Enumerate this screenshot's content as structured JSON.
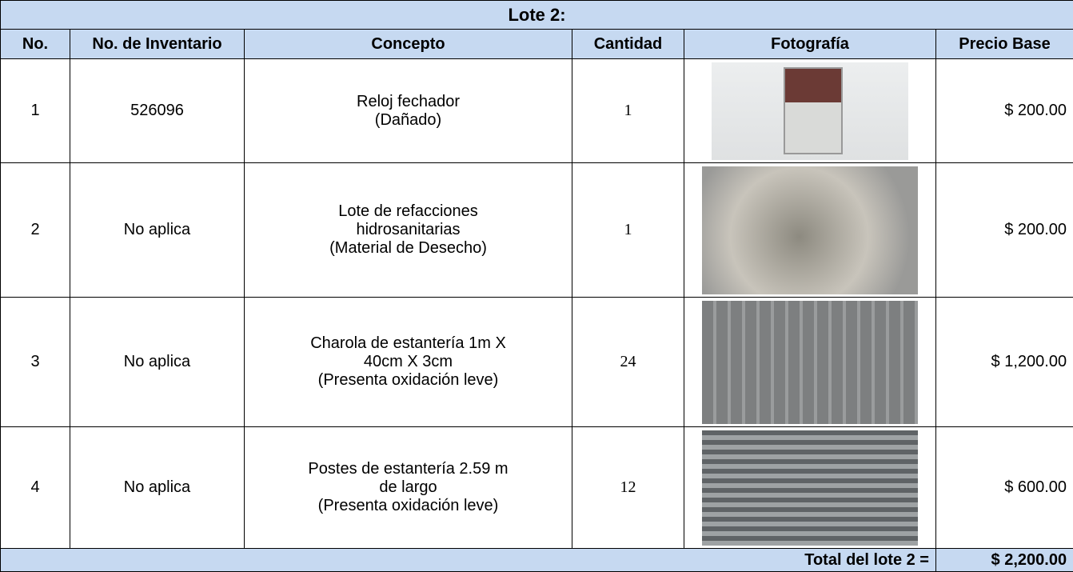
{
  "title": "Lote 2:",
  "table": {
    "headers": [
      "No.",
      "No. de Inventario",
      "Concepto",
      "Cantidad",
      "Fotografía",
      "Precio Base"
    ],
    "rows": [
      {
        "no": 1,
        "inventory": "526096",
        "concept": [
          "Reloj fechador",
          "(Dañado)"
        ],
        "quantity": 1,
        "price": "$ 200.00"
      },
      {
        "no": 2,
        "inventory": "No aplica",
        "concept": [
          "Lote de refacciones",
          "hidrosanitarias",
          "(Material de Desecho)"
        ],
        "quantity": 1,
        "price": "$ 200.00"
      },
      {
        "no": 3,
        "inventory": "No aplica",
        "concept": [
          "Charola de estantería 1m X",
          "40cm X 3cm",
          "(Presenta oxidación leve)"
        ],
        "quantity": 24,
        "price": "$ 1,200.00"
      },
      {
        "no": 4,
        "inventory": "No aplica",
        "concept": [
          "Postes de estantería 2.59 m",
          "de largo",
          "(Presenta oxidación leve)"
        ],
        "quantity": 12,
        "price": "$ 600.00"
      }
    ]
  },
  "total": {
    "label": "Total del lote 2 =",
    "value": "$ 2,200.00"
  }
}
